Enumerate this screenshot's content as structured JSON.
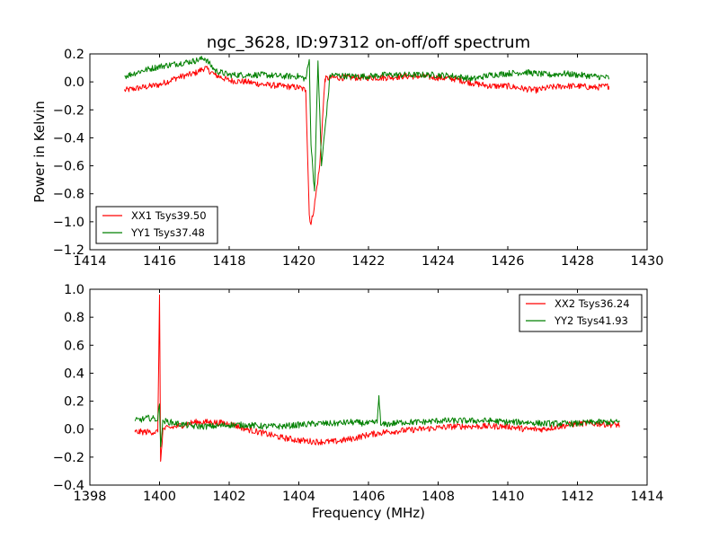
{
  "chart_data": [
    {
      "type": "line",
      "title": "ngc_3628, ID:97312 on-off/off spectrum",
      "xlabel": "",
      "ylabel": "Power in Kelvin",
      "xlim": [
        1414,
        1430
      ],
      "ylim": [
        -1.2,
        0.2
      ],
      "xticks": [
        "1414",
        "1416",
        "1418",
        "1420",
        "1422",
        "1424",
        "1426",
        "1428",
        "1430"
      ],
      "yticks": [
        "−1.2",
        "−1.0",
        "−0.8",
        "−0.6",
        "−0.4",
        "−0.2",
        "0.0",
        "0.2"
      ],
      "legend_position": "lower-left",
      "grid": false,
      "series": [
        {
          "name": "XX1 Tsys39.50",
          "color": "#ff0000",
          "x": [
            1415.0,
            1415.5,
            1416.0,
            1416.5,
            1417.0,
            1417.3,
            1417.6,
            1418.0,
            1418.5,
            1419.0,
            1419.5,
            1420.0,
            1420.2,
            1420.3,
            1420.35,
            1420.45,
            1420.6,
            1420.75,
            1420.9,
            1421.5,
            1422.0,
            1422.5,
            1423.0,
            1423.5,
            1424.0,
            1424.5,
            1425.0,
            1425.5,
            1426.0,
            1426.5,
            1426.8,
            1427.2,
            1427.6,
            1428.0,
            1428.5,
            1428.9
          ],
          "y": [
            -0.06,
            -0.04,
            -0.02,
            0.03,
            0.06,
            0.1,
            0.05,
            0.01,
            0.0,
            -0.02,
            -0.03,
            -0.04,
            -0.06,
            -0.95,
            -1.02,
            -0.88,
            -0.6,
            0.02,
            0.03,
            0.03,
            0.03,
            0.03,
            0.04,
            0.04,
            0.03,
            0.02,
            -0.01,
            -0.03,
            -0.03,
            -0.05,
            -0.06,
            -0.04,
            -0.03,
            -0.03,
            -0.04,
            -0.03
          ]
        },
        {
          "name": "YY1 Tsys37.48",
          "color": "#008000",
          "x": [
            1415.0,
            1415.5,
            1416.0,
            1416.5,
            1417.0,
            1417.3,
            1417.6,
            1418.0,
            1418.5,
            1419.0,
            1419.5,
            1420.0,
            1420.2,
            1420.3,
            1420.35,
            1420.45,
            1420.55,
            1420.65,
            1420.9,
            1421.5,
            1422.0,
            1422.5,
            1423.0,
            1423.5,
            1424.0,
            1424.5,
            1425.0,
            1425.5,
            1426.0,
            1426.5,
            1426.8,
            1427.2,
            1427.6,
            1428.0,
            1428.5,
            1428.9
          ],
          "y": [
            0.04,
            0.08,
            0.11,
            0.13,
            0.15,
            0.17,
            0.08,
            0.05,
            0.05,
            0.05,
            0.04,
            0.04,
            0.02,
            0.16,
            -0.45,
            -0.78,
            0.15,
            -0.6,
            0.05,
            0.04,
            0.04,
            0.05,
            0.05,
            0.05,
            0.05,
            0.04,
            0.02,
            0.05,
            0.06,
            0.07,
            0.06,
            0.05,
            0.06,
            0.05,
            0.04,
            0.03
          ]
        }
      ]
    },
    {
      "type": "line",
      "title": "",
      "xlabel": "Frequency (MHz)",
      "ylabel": "",
      "xlim": [
        1398,
        1414
      ],
      "ylim": [
        -0.4,
        1.0
      ],
      "xticks": [
        "1398",
        "1400",
        "1402",
        "1404",
        "1406",
        "1408",
        "1410",
        "1412",
        "1414"
      ],
      "yticks": [
        "−0.4",
        "−0.2",
        "0.0",
        "0.2",
        "0.4",
        "0.6",
        "0.8",
        "1.0"
      ],
      "legend_position": "upper-right",
      "grid": false,
      "series": [
        {
          "name": "XX2 Tsys36.24",
          "color": "#ff0000",
          "x": [
            1399.3,
            1399.7,
            1399.95,
            1400.0,
            1400.03,
            1400.1,
            1400.5,
            1401.0,
            1401.5,
            1402.0,
            1402.5,
            1403.0,
            1403.5,
            1404.0,
            1404.5,
            1405.0,
            1405.5,
            1406.0,
            1406.5,
            1407.0,
            1407.5,
            1408.0,
            1408.5,
            1409.0,
            1409.5,
            1410.0,
            1410.5,
            1411.0,
            1411.5,
            1412.0,
            1412.5,
            1413.2
          ],
          "y": [
            -0.02,
            -0.02,
            -0.02,
            0.96,
            -0.23,
            0.0,
            0.02,
            0.05,
            0.05,
            0.04,
            0.0,
            -0.03,
            -0.06,
            -0.08,
            -0.09,
            -0.09,
            -0.07,
            -0.04,
            -0.02,
            -0.01,
            0.0,
            0.01,
            0.02,
            0.02,
            0.02,
            0.02,
            0.0,
            0.0,
            0.02,
            0.04,
            0.04,
            0.03
          ]
        },
        {
          "name": "YY2 Tsys41.93",
          "color": "#008000",
          "x": [
            1399.3,
            1399.7,
            1399.95,
            1400.0,
            1400.03,
            1400.1,
            1400.5,
            1401.0,
            1401.5,
            1402.0,
            1402.5,
            1403.0,
            1403.5,
            1404.0,
            1404.5,
            1405.0,
            1405.5,
            1406.0,
            1406.25,
            1406.3,
            1406.35,
            1407.0,
            1407.5,
            1408.0,
            1408.5,
            1409.0,
            1409.5,
            1410.0,
            1410.5,
            1411.0,
            1411.5,
            1412.0,
            1412.5,
            1413.2
          ],
          "y": [
            0.06,
            0.08,
            0.07,
            0.18,
            -0.12,
            0.06,
            0.04,
            0.02,
            0.02,
            0.03,
            0.03,
            0.02,
            0.02,
            0.03,
            0.04,
            0.04,
            0.05,
            0.04,
            0.05,
            0.24,
            0.03,
            0.05,
            0.05,
            0.06,
            0.06,
            0.06,
            0.06,
            0.05,
            0.05,
            0.04,
            0.04,
            0.04,
            0.05,
            0.05
          ]
        }
      ]
    }
  ]
}
